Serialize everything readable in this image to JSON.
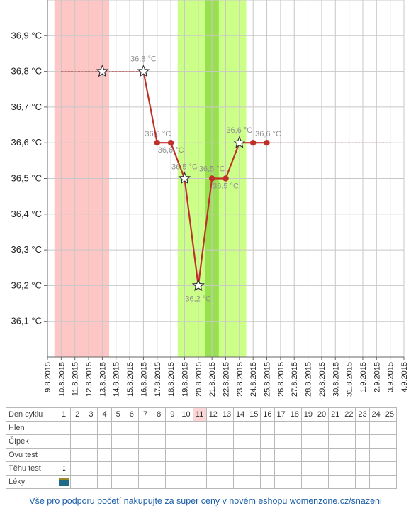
{
  "chart_data": {
    "type": "line",
    "y_ticks": [
      "36,1 °C",
      "36,2 °C",
      "36,3 °C",
      "36,4 °C",
      "36,5 °C",
      "36,6 °C",
      "36,7 °C",
      "36,8 °C",
      "36,9 °C"
    ],
    "ylim": [
      36.0,
      37.0
    ],
    "x_ticks": [
      "9.8.2015",
      "10.8.2015",
      "11.8.2015",
      "12.8.2015",
      "13.8.2015",
      "14.8.2015",
      "15.8.2015",
      "16.8.2015",
      "17.8.2015",
      "18.8.2015",
      "19.8.2015",
      "20.8.2015",
      "21.8.2015",
      "22.8.2015",
      "23.8.2015",
      "24.8.2015",
      "25.8.2015",
      "26.8.2015",
      "27.8.2015",
      "28.8.2015",
      "29.8.2015",
      "30.8.2015",
      "31.8.2015",
      "1.9.2015",
      "2.9.2015",
      "3.9.2015",
      "4.9.2015"
    ],
    "grid": true,
    "shaded_regions": [
      {
        "kind": "period",
        "from": 1,
        "to": 4,
        "color": "#ffc6c6"
      },
      {
        "kind": "fertile",
        "from": 10,
        "to": 14,
        "color": "#ccff88"
      },
      {
        "kind": "ovulation",
        "from": 12,
        "to": 12,
        "color": "#99e050"
      }
    ],
    "before_line": {
      "day_from": 1,
      "day_to": 7,
      "value": 36.8
    },
    "after_line": {
      "day_from": 15,
      "day_to": 25,
      "value": 36.6
    },
    "series": [
      {
        "color": "#c0302a",
        "points": [
          {
            "day": 4,
            "value": 36.8,
            "marker": "star",
            "label": ""
          },
          {
            "day": 7,
            "value": 36.8,
            "marker": "star",
            "label": "36,8 °C"
          },
          {
            "day": 8,
            "value": 36.6,
            "marker": "dot",
            "label": "36,6 °C"
          },
          {
            "day": 9,
            "value": 36.6,
            "marker": "dot",
            "label": "36,6 °C"
          },
          {
            "day": 10,
            "value": 36.5,
            "marker": "star",
            "label": "36,5 °C"
          },
          {
            "day": 11,
            "value": 36.2,
            "marker": "star",
            "label": "36,2 °C"
          },
          {
            "day": 12,
            "value": 36.5,
            "marker": "dot",
            "label": "36,5 °C"
          },
          {
            "day": 13,
            "value": 36.5,
            "marker": "dot",
            "label": "36,5 °C"
          },
          {
            "day": 14,
            "value": 36.6,
            "marker": "star",
            "label": "36,6 °C"
          },
          {
            "day": 15,
            "value": 36.6,
            "marker": "dot",
            "label": ""
          },
          {
            "day": 16,
            "value": 36.6,
            "marker": "dot",
            "label": "36,6 °C"
          }
        ]
      }
    ]
  },
  "cycle_table": {
    "rows": [
      {
        "label": "Den cyklu",
        "cells": [
          "1",
          "2",
          "3",
          "4",
          "5",
          "6",
          "7",
          "8",
          "9",
          "10",
          "11",
          "12",
          "13",
          "14",
          "15",
          "16",
          "17",
          "18",
          "19",
          "20",
          "21",
          "22",
          "23",
          "24",
          "25"
        ]
      },
      {
        "label": "Hlen",
        "cells": []
      },
      {
        "label": "Čípek",
        "cells": []
      },
      {
        "label": "Ovu test",
        "cells": []
      },
      {
        "label": "Těhu test",
        "cells": []
      },
      {
        "label": "Léky",
        "cells": []
      }
    ],
    "today_day": 11,
    "pregnancy_test_day": 1,
    "medication_day": 1,
    "pregnancy_test_icon": "pregnancy-test-icon",
    "medication_icon": "pill-icon"
  },
  "footer": {
    "promo_text": "Vše pro podporu početí nakupujte za super ceny v novém eshopu womenzone.cz/snazeni"
  }
}
